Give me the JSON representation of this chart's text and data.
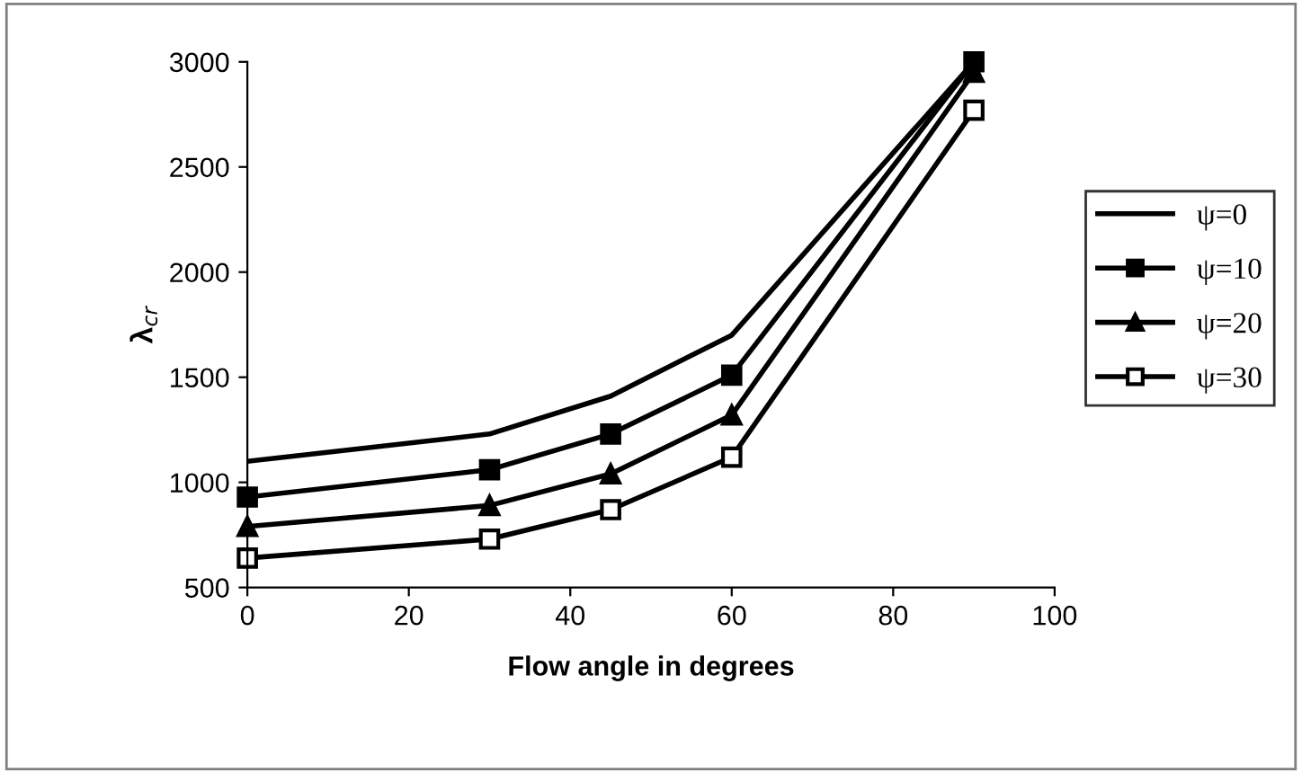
{
  "chart_data": {
    "type": "line",
    "xlabel": "Flow angle in degrees",
    "ylabel": "λ$_{cr}$",
    "x": [
      0,
      30,
      45,
      60,
      90
    ],
    "series": [
      {
        "name": "ψ=0",
        "color": "#000000",
        "marker": "none",
        "values": [
          1100,
          1230,
          1410,
          1700,
          3000
        ]
      },
      {
        "name": "ψ=10",
        "color": "#000000",
        "marker": "square",
        "values": [
          930,
          1060,
          1230,
          1510,
          3000
        ]
      },
      {
        "name": "ψ=20",
        "color": "#000000",
        "marker": "triangle",
        "values": [
          790,
          890,
          1040,
          1320,
          2950
        ]
      },
      {
        "name": "ψ=30",
        "color": "#000000",
        "marker": "square_open",
        "values": [
          640,
          730,
          870,
          1120,
          2770
        ]
      }
    ],
    "xlim": [
      0,
      100
    ],
    "xticks": [
      0,
      20,
      40,
      60,
      80,
      100
    ],
    "ylim": [
      500,
      3000
    ],
    "yticks": [
      500,
      1000,
      1500,
      2000,
      2500,
      3000
    ],
    "grid": false,
    "legend": "right"
  }
}
